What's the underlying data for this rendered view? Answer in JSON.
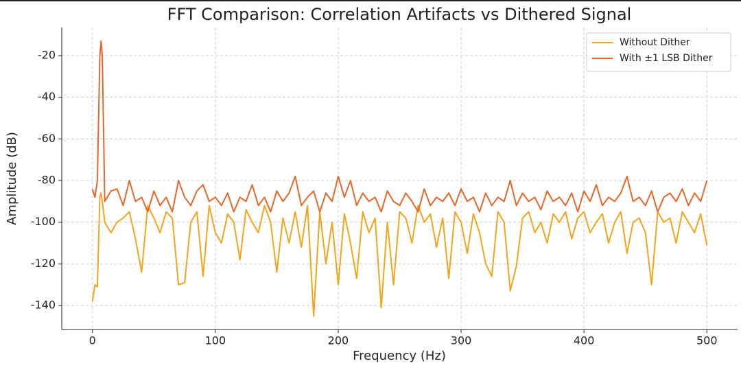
{
  "chart_data": {
    "type": "line",
    "title": "FFT Comparison: Correlation Artifacts vs Dithered Signal",
    "xlabel": "Frequency (Hz)",
    "ylabel": "Amplitude (dB)",
    "x": [
      0,
      2,
      4,
      6,
      7,
      8,
      10,
      15,
      20,
      25,
      30,
      35,
      40,
      45,
      50,
      55,
      60,
      65,
      70,
      75,
      80,
      85,
      90,
      95,
      100,
      105,
      110,
      115,
      120,
      125,
      130,
      135,
      140,
      145,
      150,
      155,
      160,
      165,
      170,
      175,
      180,
      185,
      190,
      195,
      200,
      205,
      210,
      215,
      220,
      225,
      230,
      235,
      240,
      245,
      250,
      255,
      260,
      265,
      270,
      275,
      280,
      285,
      290,
      295,
      300,
      305,
      310,
      315,
      320,
      325,
      330,
      335,
      340,
      345,
      350,
      355,
      360,
      365,
      370,
      375,
      380,
      385,
      390,
      395,
      400,
      405,
      410,
      415,
      420,
      425,
      430,
      435,
      440,
      445,
      450,
      455,
      460,
      465,
      470,
      475,
      480,
      485,
      490,
      495,
      500
    ],
    "series": [
      {
        "name": "Without Dither",
        "color": "#f5a31a",
        "values": [
          -138,
          -130,
          -131,
          -88,
          -86,
          -90,
          -100,
          -105,
          -100,
          -98,
          -95,
          -108,
          -124,
          -92,
          -98,
          -105,
          -95,
          -98,
          -130,
          -129,
          -100,
          -95,
          -126,
          -92,
          -105,
          -110,
          -96,
          -100,
          -118,
          -94,
          -100,
          -105,
          -92,
          -100,
          -124,
          -98,
          -110,
          -95,
          -112,
          -92,
          -145,
          -95,
          -120,
          -100,
          -130,
          -96,
          -110,
          -127,
          -95,
          -105,
          -98,
          -141,
          -100,
          -130,
          -95,
          -98,
          -110,
          -92,
          -100,
          -96,
          -112,
          -98,
          -127,
          -95,
          -100,
          -115,
          -96,
          -105,
          -120,
          -126,
          -95,
          -100,
          -133,
          -121,
          -98,
          -95,
          -105,
          -100,
          -110,
          -96,
          -100,
          -95,
          -108,
          -98,
          -95,
          -105,
          -100,
          -96,
          -110,
          -100,
          -95,
          -115,
          -100,
          -98,
          -105,
          -130,
          -95,
          -100,
          -98,
          -110,
          -95,
          -100,
          -105,
          -96,
          -111
        ]
      },
      {
        "name": "With ±1 LSB Dither",
        "color": "#e8662a",
        "values": [
          -84,
          -88,
          -80,
          -20,
          -13,
          -20,
          -90,
          -85,
          -84,
          -92,
          -80,
          -90,
          -88,
          -95,
          -85,
          -92,
          -88,
          -95,
          -80,
          -88,
          -92,
          -85,
          -82,
          -90,
          -88,
          -92,
          -86,
          -95,
          -88,
          -90,
          -82,
          -92,
          -88,
          -95,
          -85,
          -90,
          -86,
          -78,
          -92,
          -88,
          -85,
          -95,
          -86,
          -90,
          -78,
          -88,
          -80,
          -92,
          -86,
          -90,
          -88,
          -95,
          -85,
          -90,
          -92,
          -86,
          -90,
          -95,
          -84,
          -92,
          -88,
          -90,
          -86,
          -92,
          -84,
          -90,
          -88,
          -95,
          -86,
          -92,
          -88,
          -90,
          -80,
          -92,
          -86,
          -90,
          -88,
          -94,
          -85,
          -90,
          -88,
          -92,
          -86,
          -95,
          -85,
          -90,
          -82,
          -92,
          -88,
          -90,
          -86,
          -78,
          -90,
          -88,
          -92,
          -85,
          -95,
          -88,
          -86,
          -90,
          -84,
          -92,
          -86,
          -90,
          -80
        ]
      }
    ],
    "xlim": [
      -25,
      525
    ],
    "xticks": [
      0,
      100,
      200,
      300,
      400,
      500
    ],
    "ylim": [
      -151.5,
      -6.5
    ],
    "yticks": [
      -140,
      -120,
      -100,
      -80,
      -60,
      -40,
      -20
    ],
    "grid": true,
    "legend": "upper right"
  }
}
